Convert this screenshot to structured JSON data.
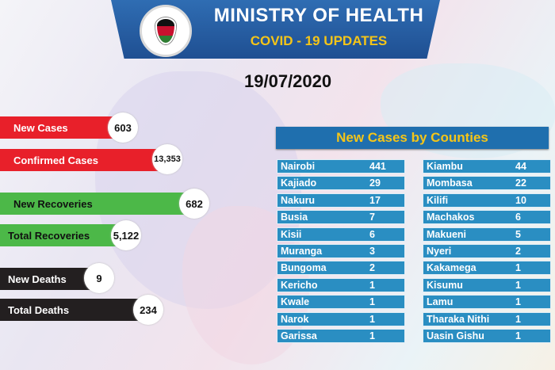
{
  "header": {
    "title": "MINISTRY OF HEALTH",
    "subtitle": "COVID - 19 UPDATES",
    "date": "19/07/2020"
  },
  "stats": [
    {
      "label": "New Cases",
      "value": "603",
      "color": "#e8202a"
    },
    {
      "label": "Confirmed Cases",
      "value": "13,353",
      "color": "#e8202a"
    },
    {
      "label": "New Recoveries",
      "value": "682",
      "color": "#4cb848"
    },
    {
      "label": "Total Recoveries",
      "value": "5,122",
      "color": "#4cb848"
    },
    {
      "label": "New Deaths",
      "value": "9",
      "color": "#231f20"
    },
    {
      "label": "Total Deaths",
      "value": "234",
      "color": "#231f20"
    }
  ],
  "counties": {
    "heading": "New Cases by Counties",
    "left": [
      {
        "name": "Nairobi",
        "value": "441"
      },
      {
        "name": "Kajiado",
        "value": "29"
      },
      {
        "name": "Nakuru",
        "value": "17"
      },
      {
        "name": "Busia",
        "value": "7"
      },
      {
        "name": "Kisii",
        "value": "6"
      },
      {
        "name": "Muranga",
        "value": "3"
      },
      {
        "name": "Bungoma",
        "value": "2"
      },
      {
        "name": "Kericho",
        "value": "1"
      },
      {
        "name": "Kwale",
        "value": "1"
      },
      {
        "name": "Narok",
        "value": "1"
      },
      {
        "name": "Garissa",
        "value": "1"
      }
    ],
    "right": [
      {
        "name": "Kiambu",
        "value": "44"
      },
      {
        "name": "Mombasa",
        "value": "22"
      },
      {
        "name": "Kilifi",
        "value": "10"
      },
      {
        "name": "Machakos",
        "value": "6"
      },
      {
        "name": "Makueni",
        "value": "5"
      },
      {
        "name": "Nyeri",
        "value": "2"
      },
      {
        "name": "Kakamega",
        "value": "1"
      },
      {
        "name": "Kisumu",
        "value": "1"
      },
      {
        "name": "Lamu",
        "value": "1"
      },
      {
        "name": "Tharaka Nithi",
        "value": "1"
      },
      {
        "name": "Uasin Gishu",
        "value": "1"
      }
    ]
  }
}
